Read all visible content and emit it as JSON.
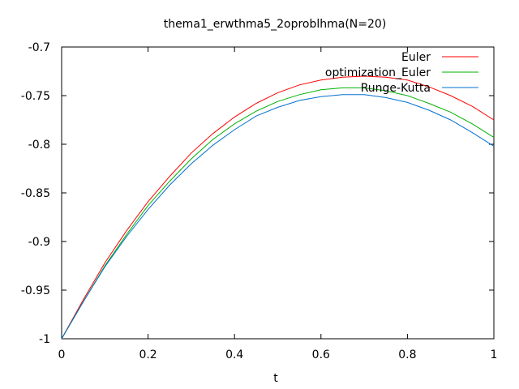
{
  "chart_data": {
    "type": "line",
    "title": "thema1_erwthma5_2oproblhma(N=20)",
    "xlabel": "t",
    "ylabel": "",
    "xlim": [
      0,
      1
    ],
    "ylim": [
      -1,
      -0.7
    ],
    "xticks": [
      0,
      0.2,
      0.4,
      0.6,
      0.8,
      1
    ],
    "xtick_labels": [
      "0",
      "0.2",
      "0.4",
      "0.6",
      "0.8",
      "1"
    ],
    "yticks": [
      -1,
      -0.95,
      -0.9,
      -0.85,
      -0.8,
      -0.75,
      -0.7
    ],
    "ytick_labels": [
      "-1",
      "-0.95",
      "-0.9",
      "-0.85",
      "-0.8",
      "-0.75",
      "-0.7"
    ],
    "grid": false,
    "legend_position": "top-right",
    "x": [
      0,
      0.05,
      0.1,
      0.15,
      0.2,
      0.25,
      0.3,
      0.35,
      0.4,
      0.45,
      0.5,
      0.55,
      0.6,
      0.65,
      0.7,
      0.75,
      0.8,
      0.85,
      0.9,
      0.95,
      1
    ],
    "series": [
      {
        "name": "Euler",
        "color": "#ff0000",
        "values": [
          -1.0,
          -0.96,
          -0.922,
          -0.889,
          -0.859,
          -0.833,
          -0.809,
          -0.789,
          -0.772,
          -0.758,
          -0.747,
          -0.739,
          -0.734,
          -0.731,
          -0.73,
          -0.731,
          -0.734,
          -0.741,
          -0.75,
          -0.761,
          -0.775
        ]
      },
      {
        "name": "optimization_Euler",
        "color": "#00b000",
        "values": [
          -1.0,
          -0.962,
          -0.925,
          -0.893,
          -0.863,
          -0.838,
          -0.815,
          -0.795,
          -0.779,
          -0.766,
          -0.756,
          -0.749,
          -0.744,
          -0.742,
          -0.742,
          -0.745,
          -0.75,
          -0.758,
          -0.767,
          -0.779,
          -0.793
        ]
      },
      {
        "name": "Runge-Kutta",
        "color": "#0070d0",
        "values": [
          -1.0,
          -0.962,
          -0.926,
          -0.895,
          -0.867,
          -0.842,
          -0.82,
          -0.801,
          -0.785,
          -0.771,
          -0.762,
          -0.755,
          -0.751,
          -0.749,
          -0.749,
          -0.752,
          -0.757,
          -0.765,
          -0.775,
          -0.788,
          -0.802
        ]
      }
    ]
  }
}
